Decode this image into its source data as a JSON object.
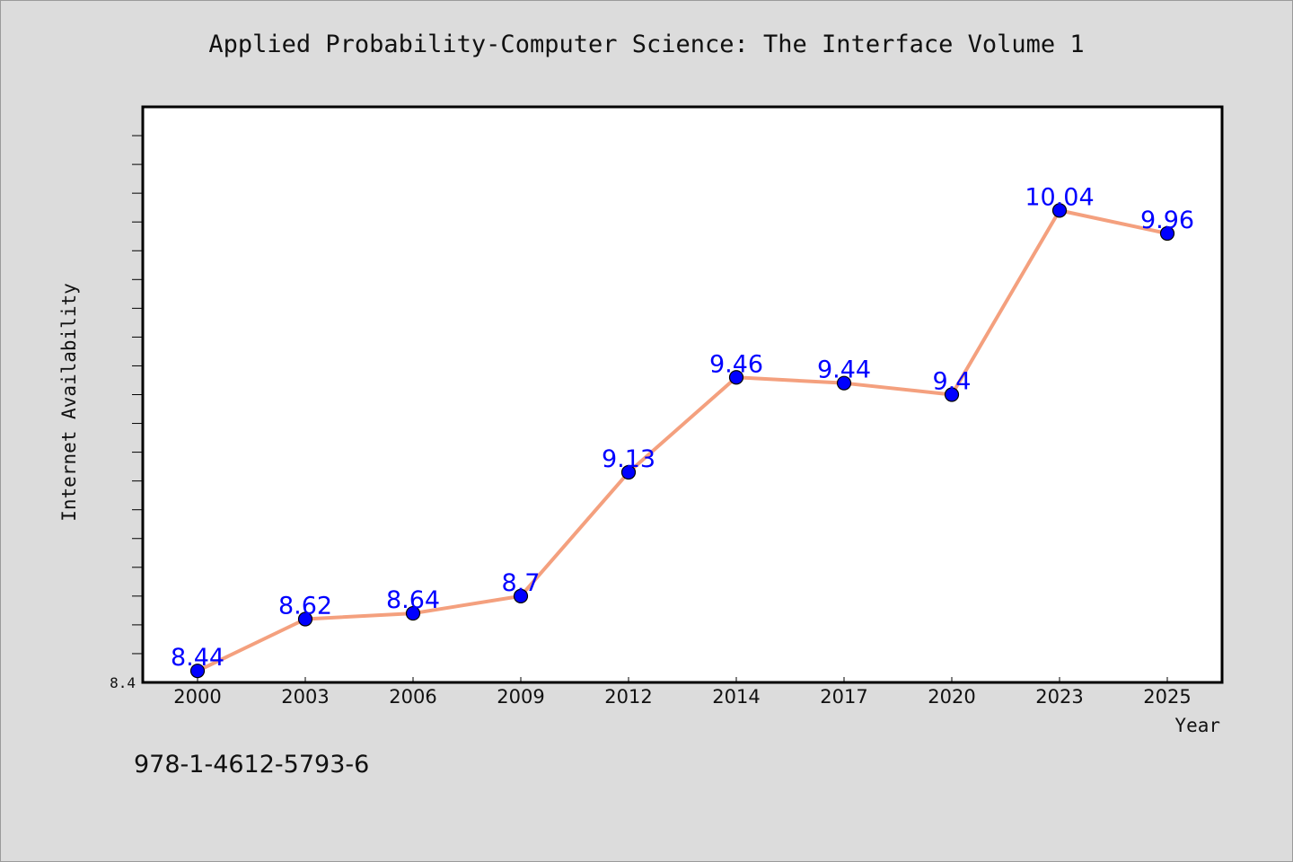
{
  "chart_data": {
    "type": "line",
    "title": "Applied Probability-Computer Science: The Interface Volume 1",
    "xlabel": "Year",
    "ylabel": "Internet Availability",
    "categories": [
      "2000",
      "2003",
      "2006",
      "2009",
      "2012",
      "2014",
      "2017",
      "2020",
      "2023",
      "2025"
    ],
    "series": [
      {
        "values": [
          8.44,
          8.62,
          8.64,
          8.7,
          9.13,
          9.46,
          9.44,
          9.4,
          10.04,
          9.96
        ],
        "data_labels": [
          "8.44",
          "8.62",
          "8.64",
          "8.7",
          "9.13",
          "9.46",
          "9.44",
          "9.4",
          "10.04",
          "9.96"
        ]
      }
    ],
    "ylim": [
      8.4,
      10.4
    ],
    "y_tick_labels": [
      "8.4"
    ],
    "grid": false,
    "colors": {
      "line": "#f4a07e",
      "marker": "#0000ff",
      "label": "#0000ff"
    }
  },
  "footer": {
    "isbn": "978-1-4612-5793-6"
  }
}
